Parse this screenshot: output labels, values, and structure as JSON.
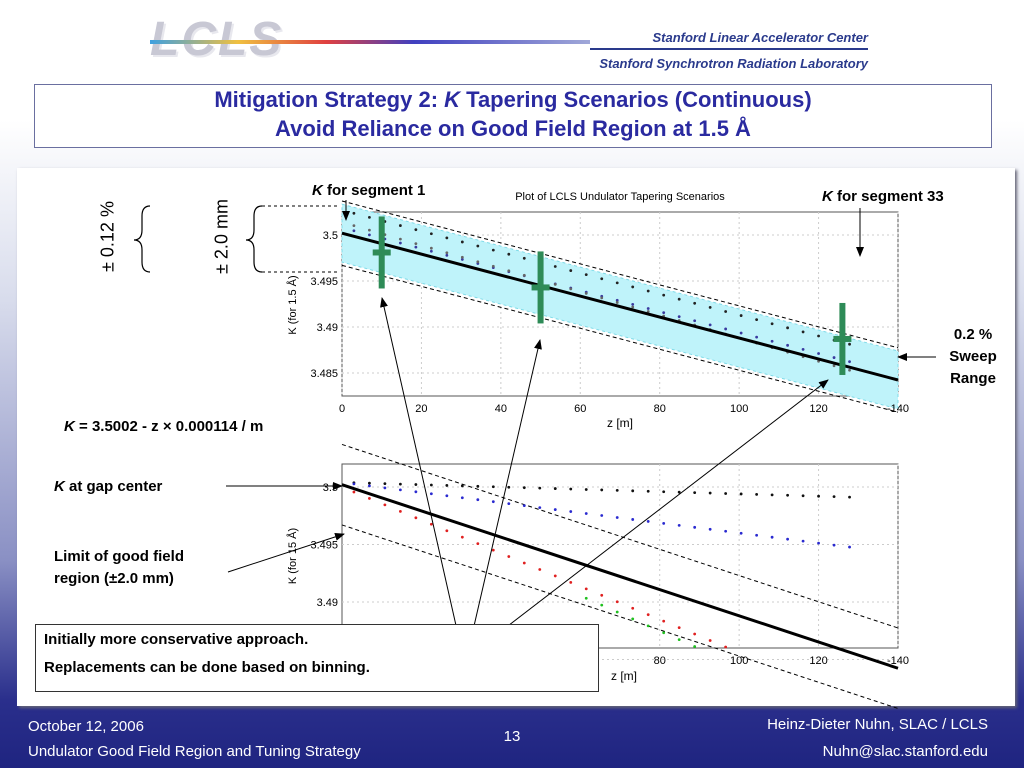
{
  "header": {
    "logo_text": "LCLS",
    "institution_1": "Stanford Linear Accelerator Center",
    "institution_2": "Stanford Synchrotron Radiation Laboratory"
  },
  "title": {
    "line1_prefix": "Mitigation Strategy 2: ",
    "line1_k": "K",
    "line1_suffix": " Tapering Scenarios (Continuous)",
    "line2": "Avoid Reliance on Good Field Region at 1.5 Å"
  },
  "labels": {
    "tol_percent": "± 0.12 %",
    "tol_mm": "± 2.0 mm",
    "k_seg1_k": "K",
    "k_seg1_rest": " for segment 1",
    "k_seg33_k": "K",
    "k_seg33_rest": " for segment 33",
    "sweep_line1": "0.2 %",
    "sweep_line2": "Sweep",
    "sweep_line3": "Range",
    "formula_k": "K",
    "formula_rest": " = 3.5002 - z × 0.000114 / m",
    "k_gap_k": "K",
    "k_gap_rest": " at gap center",
    "limit_line1": "Limit of good field",
    "limit_line2": "region (±2.0 mm)"
  },
  "note": {
    "line1": "Initially more conservative approach.",
    "line2": "Replacements can be done based on binning."
  },
  "footer": {
    "date": "October 12, 2006",
    "subtitle": "Undulator Good Field Region and Tuning Strategy",
    "page": "13",
    "author": "Heinz-Dieter Nuhn, SLAC / LCLS",
    "email": "Nuhn@slac.stanford.edu"
  },
  "chart_data": [
    {
      "type": "scatter",
      "title": "Plot of LCLS Undulator Tapering Scenarios",
      "xlabel": "z [m]",
      "ylabel": "K (for 1.5 Å)",
      "xlim": [
        0,
        140
      ],
      "ylim": [
        3.4825,
        3.5025
      ],
      "xticks": [
        "0",
        "20",
        "40",
        "60",
        "80",
        "100",
        "120",
        "-140"
      ],
      "yticks": [
        "3.5",
        "3.495",
        "3.49",
        "3.485"
      ],
      "grid": true,
      "line": {
        "intercept": 3.5002,
        "slope": -0.000114
      },
      "band_offset": 0.0035,
      "segment_markers": [
        {
          "z": 10,
          "k": 3.4981
        },
        {
          "z": 50,
          "k": 3.4943
        },
        {
          "z": 126,
          "k": 3.4887
        }
      ],
      "colors": {
        "band": "#bff3fa",
        "marker": "#2e8b57"
      }
    },
    {
      "type": "scatter",
      "xlabel": "z [m]",
      "ylabel": "K (for 15 Å)",
      "xlim": [
        0,
        140
      ],
      "ylim": [
        3.486,
        3.502
      ],
      "xticks": [
        "80",
        "100",
        "120",
        "-140"
      ],
      "yticks": [
        "3.5",
        "3.495",
        "3.49",
        "3.485"
      ],
      "grid": true,
      "line": {
        "intercept": 3.5002,
        "slope": -0.000114
      },
      "band_offset": 0.0035
    }
  ]
}
